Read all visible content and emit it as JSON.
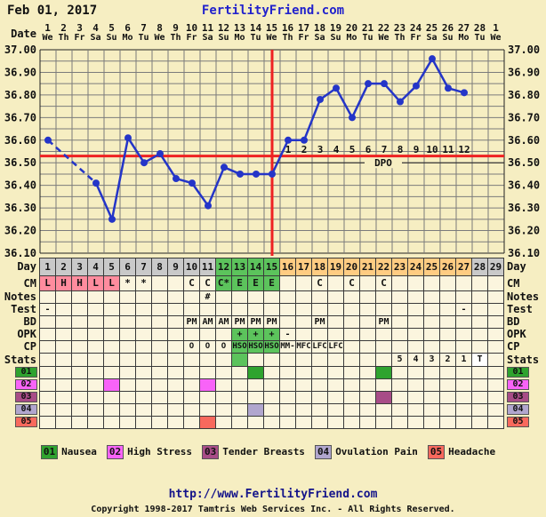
{
  "header": {
    "date": "Feb 01, 2017",
    "site": "FertilityFriend.com"
  },
  "dates": {
    "label": "Date",
    "numbers": [
      "1",
      "2",
      "3",
      "4",
      "5",
      "6",
      "7",
      "8",
      "9",
      "10",
      "11",
      "12",
      "13",
      "14",
      "15",
      "16",
      "17",
      "18",
      "19",
      "20",
      "21",
      "22",
      "23",
      "24",
      "25",
      "26",
      "27",
      "28",
      "1"
    ],
    "weekdays": [
      "We",
      "Th",
      "Fr",
      "Sa",
      "Su",
      "Mo",
      "Tu",
      "We",
      "Th",
      "Fr",
      "Sa",
      "Su",
      "Mo",
      "Tu",
      "We",
      "Th",
      "Fr",
      "Sa",
      "Su",
      "Mo",
      "Tu",
      "We",
      "Th",
      "Fr",
      "Sa",
      "Su",
      "Mo",
      "Tu",
      "We"
    ]
  },
  "chart_data": {
    "type": "line",
    "title": "Feb 01, 2017",
    "x_days": [
      1,
      2,
      3,
      4,
      5,
      6,
      7,
      8,
      9,
      10,
      11,
      12,
      13,
      14,
      15,
      16,
      17,
      18,
      19,
      20,
      21,
      22,
      23,
      24,
      25,
      26,
      27,
      28,
      29
    ],
    "temps_c": [
      36.6,
      null,
      null,
      36.41,
      36.25,
      36.61,
      36.5,
      36.54,
      36.43,
      36.41,
      36.31,
      36.48,
      36.45,
      36.45,
      36.45,
      36.6,
      36.6,
      36.78,
      36.83,
      36.7,
      36.85,
      36.85,
      36.77,
      36.84,
      36.96,
      36.83,
      36.81,
      null,
      null
    ],
    "missing_days": [
      2,
      3,
      28,
      29
    ],
    "ylim": [
      36.1,
      37.0
    ],
    "y_ticks": [
      "37.00",
      "36.90",
      "36.80",
      "36.70",
      "36.60",
      "36.50",
      "36.40",
      "36.30",
      "36.20",
      "36.10"
    ],
    "grid_step": 0.05,
    "coverline_c": 36.53,
    "ovulation_line_day": 15,
    "dpo": {
      "label": "DPO",
      "start_day": 16,
      "numbers": [
        "1",
        "2",
        "3",
        "4",
        "5",
        "6",
        "7",
        "8",
        "9",
        "10",
        "11",
        "12"
      ]
    },
    "line_color": "#2435C8",
    "coverline_color": "#EE2222"
  },
  "grid": {
    "rows": [
      {
        "id": "day",
        "label": "Day",
        "cells": [
          [
            1,
            "1",
            "gray"
          ],
          [
            2,
            "2",
            "gray"
          ],
          [
            3,
            "3",
            "gray"
          ],
          [
            4,
            "4",
            "gray"
          ],
          [
            5,
            "5",
            "gray"
          ],
          [
            6,
            "6",
            "gray"
          ],
          [
            7,
            "7",
            "gray"
          ],
          [
            8,
            "8",
            "gray"
          ],
          [
            9,
            "9",
            "gray"
          ],
          [
            10,
            "10",
            "gray"
          ],
          [
            11,
            "11",
            "gray"
          ],
          [
            12,
            "12",
            "green"
          ],
          [
            13,
            "13",
            "green"
          ],
          [
            14,
            "14",
            "green"
          ],
          [
            15,
            "15",
            "green"
          ],
          [
            16,
            "16",
            "orange"
          ],
          [
            17,
            "17",
            "orange"
          ],
          [
            18,
            "18",
            "orange"
          ],
          [
            19,
            "19",
            "orange"
          ],
          [
            20,
            "20",
            "orange"
          ],
          [
            21,
            "21",
            "orange"
          ],
          [
            22,
            "22",
            "orange"
          ],
          [
            23,
            "23",
            "orange"
          ],
          [
            24,
            "24",
            "orange"
          ],
          [
            25,
            "25",
            "orange"
          ],
          [
            26,
            "26",
            "orange"
          ],
          [
            27,
            "27",
            "orange"
          ],
          [
            28,
            "28",
            "gray"
          ],
          [
            29,
            "29",
            "gray"
          ]
        ]
      },
      {
        "id": "cm",
        "label": "CM",
        "cells": [
          [
            1,
            "L",
            "pink"
          ],
          [
            2,
            "H",
            "pink"
          ],
          [
            3,
            "H",
            "pink"
          ],
          [
            4,
            "L",
            "pink"
          ],
          [
            5,
            "L",
            "pink"
          ],
          [
            6,
            "*",
            ""
          ],
          [
            7,
            "*",
            ""
          ],
          [
            10,
            "C",
            ""
          ],
          [
            11,
            "C",
            ""
          ],
          [
            12,
            "C*",
            "green"
          ],
          [
            13,
            "E",
            "green"
          ],
          [
            14,
            "E",
            "green"
          ],
          [
            15,
            "E",
            "green"
          ],
          [
            18,
            "C",
            ""
          ],
          [
            20,
            "C",
            ""
          ],
          [
            22,
            "C",
            ""
          ]
        ]
      },
      {
        "id": "notes",
        "label": "Notes",
        "cells": [
          [
            11,
            "#",
            ""
          ]
        ]
      },
      {
        "id": "test",
        "label": "Test",
        "cells": [
          [
            1,
            "-",
            ""
          ],
          [
            27,
            "-",
            ""
          ]
        ]
      },
      {
        "id": "bd",
        "label": "BD",
        "cells": [
          [
            10,
            "PM",
            ""
          ],
          [
            11,
            "AM",
            ""
          ],
          [
            12,
            "AM",
            ""
          ],
          [
            13,
            "PM",
            ""
          ],
          [
            14,
            "PM",
            ""
          ],
          [
            15,
            "PM",
            ""
          ],
          [
            18,
            "PM",
            ""
          ],
          [
            22,
            "PM",
            ""
          ]
        ]
      },
      {
        "id": "opk",
        "label": "OPK",
        "cells": [
          [
            13,
            "+",
            "green"
          ],
          [
            14,
            "+",
            "green"
          ],
          [
            15,
            "+",
            "green"
          ],
          [
            16,
            "-",
            ""
          ]
        ]
      },
      {
        "id": "cp",
        "label": "CP",
        "cells": [
          [
            10,
            "O",
            ""
          ],
          [
            11,
            "O",
            ""
          ],
          [
            12,
            "O",
            ""
          ],
          [
            13,
            "HSO",
            "green"
          ],
          [
            14,
            "HSO",
            "green"
          ],
          [
            15,
            "HSO",
            "green"
          ],
          [
            16,
            "MM-",
            ""
          ],
          [
            17,
            "MFC",
            ""
          ],
          [
            18,
            "LFC",
            ""
          ],
          [
            19,
            "LFC",
            ""
          ]
        ]
      },
      {
        "id": "stats",
        "label": "Stats",
        "cells": [
          [
            13,
            "",
            "green"
          ],
          [
            23,
            "5",
            ""
          ],
          [
            24,
            "4",
            ""
          ],
          [
            25,
            "3",
            ""
          ],
          [
            26,
            "2",
            ""
          ],
          [
            27,
            "1",
            ""
          ],
          [
            28,
            "T",
            "white"
          ]
        ]
      }
    ]
  },
  "symptoms": [
    {
      "code": "01",
      "label": "Nausea",
      "colorKey": "s1",
      "days": [
        14,
        22
      ]
    },
    {
      "code": "02",
      "label": "High Stress",
      "colorKey": "s2",
      "days": [
        5,
        11
      ]
    },
    {
      "code": "03",
      "label": "Tender Breasts",
      "colorKey": "s3",
      "days": [
        22
      ]
    },
    {
      "code": "04",
      "label": "Ovulation Pain",
      "colorKey": "s4",
      "days": [
        14
      ]
    },
    {
      "code": "05",
      "label": "Headache",
      "colorKey": "s5",
      "days": [
        11
      ]
    }
  ],
  "palette": {
    "gray": "#C9C9C9",
    "green": "#5CC35C",
    "orange": "#FFCC82",
    "pink": "#FF8C9E",
    "white": "#FFFFFF",
    "cell": "#FBF5DE",
    "bg": "#F6EEC2",
    "s1": "#2FA32F",
    "s2": "#F863F8",
    "s3": "#A84C87",
    "s4": "#B1A6CE",
    "s5": "#F8695D"
  },
  "footer": {
    "url": "http://www.FertilityFriend.com",
    "copyright": "Copyright 1998-2017 Tamtris Web Services Inc. - All Rights Reserved."
  }
}
